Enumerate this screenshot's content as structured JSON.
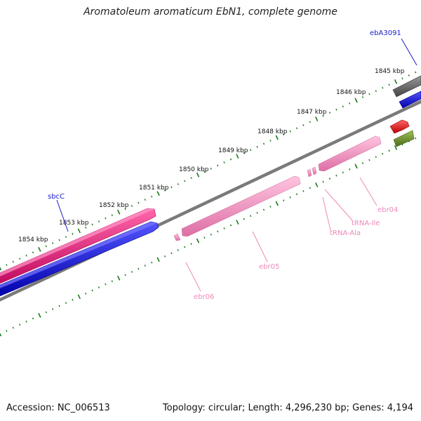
{
  "header": {
    "title": "Aromatoleum aromaticum EbN1, complete genome"
  },
  "footer": {
    "accession": "Accession: NC_006513",
    "summary": "Topology: circular; Length: 4,296,230 bp; Genes: 4,194"
  },
  "ruler": {
    "labels": [
      "1845 kbp",
      "1846 kbp",
      "1847 kbp",
      "1848 kbp",
      "1849 kbp",
      "1850 kbp",
      "1851 kbp",
      "1852 kbp",
      "1853 kbp",
      "1854 kbp"
    ],
    "tick_color": "#1a7a1a"
  },
  "features": {
    "labels": {
      "ebA3091": "ebA3091",
      "sbcC": "sbcC",
      "ebr04": "ebr04",
      "tRNA_Ile": "tRNA-Ile",
      "tRNA_Ala": "tRNA-Ala",
      "ebr05": "ebr05",
      "ebr06": "ebr06"
    },
    "colors": {
      "gene_label": "#1a1acc",
      "rna_label": "#ee88bb",
      "magenta": "#ee1177",
      "blue": "#1111dd",
      "pink": "#ee88bb",
      "dark_gray": "#555555",
      "red": "#ee1111",
      "olive": "#6b8e23",
      "backbone": "#888888"
    }
  }
}
